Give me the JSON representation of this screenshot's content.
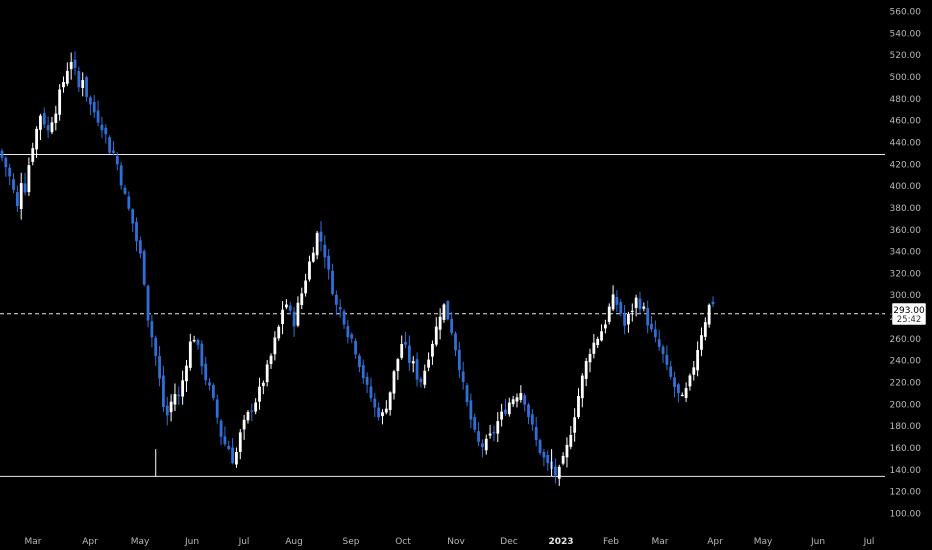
{
  "chart_data": {
    "type": "candlestick",
    "title": "",
    "xlabel": "",
    "ylabel": "",
    "ylim": [
      92,
      568
    ],
    "grid": false,
    "y_ticks": [
      "560.00",
      "540.00",
      "520.00",
      "500.00",
      "480.00",
      "460.00",
      "440.00",
      "420.00",
      "400.00",
      "380.00",
      "360.00",
      "340.00",
      "320.00",
      "300.00",
      "280.00",
      "260.00",
      "240.00",
      "220.00",
      "200.00",
      "180.00",
      "160.00",
      "140.00",
      "120.00",
      "100.00"
    ],
    "x_ticks": [
      {
        "label": "Mar",
        "bold": false
      },
      {
        "label": "Apr",
        "bold": false
      },
      {
        "label": "May",
        "bold": false
      },
      {
        "label": "Jun",
        "bold": false
      },
      {
        "label": "Jul",
        "bold": false
      },
      {
        "label": "Aug",
        "bold": false
      },
      {
        "label": "Sep",
        "bold": false
      },
      {
        "label": "Oct",
        "bold": false
      },
      {
        "label": "Nov",
        "bold": false
      },
      {
        "label": "Dec",
        "bold": false
      },
      {
        "label": "2023",
        "bold": true
      },
      {
        "label": "Feb",
        "bold": false
      },
      {
        "label": "Mar",
        "bold": false
      },
      {
        "label": "Apr",
        "bold": false
      },
      {
        "label": "May",
        "bold": false
      },
      {
        "label": "Jun",
        "bold": false
      },
      {
        "label": "Jul",
        "bold": false
      }
    ],
    "horizontal_levels": [
      {
        "value": 429,
        "style": "solid"
      },
      {
        "value": 134,
        "style": "solid"
      },
      {
        "value": 283,
        "style": "dashed"
      }
    ],
    "current_price": "293.00",
    "countdown": "25:42",
    "up_color": "#ffffff",
    "down_color": "#2f6fd6",
    "close_path": [
      426,
      418,
      408,
      395,
      380,
      406,
      398,
      420,
      438,
      452,
      466,
      459,
      450,
      462,
      471,
      484,
      496,
      508,
      516,
      504,
      490,
      500,
      484,
      474,
      468,
      462,
      456,
      446,
      434,
      430,
      420,
      405,
      390,
      378,
      366,
      350,
      336,
      314,
      280,
      262,
      244,
      222,
      198,
      190,
      202,
      210,
      206,
      222,
      240,
      256,
      262,
      250,
      238,
      224,
      214,
      202,
      188,
      172,
      164,
      160,
      150,
      156,
      172,
      182,
      190,
      198,
      204,
      212,
      222,
      232,
      244,
      258,
      270,
      288,
      292,
      282,
      276,
      290,
      302,
      316,
      330,
      344,
      356,
      350,
      338,
      320,
      306,
      290,
      286,
      278,
      266,
      260,
      250,
      238,
      226,
      214,
      206,
      196,
      192,
      190,
      200,
      212,
      228,
      242,
      256,
      250,
      240,
      236,
      226,
      222,
      232,
      246,
      258,
      270,
      284,
      290,
      280,
      268,
      252,
      236,
      216,
      200,
      186,
      172,
      164,
      162,
      164,
      170,
      176,
      184,
      190,
      196,
      202,
      206,
      210,
      212,
      204,
      190,
      178,
      166,
      158,
      150,
      144,
      140,
      136,
      138,
      148,
      160,
      176,
      192,
      208,
      224,
      238,
      250,
      256,
      262,
      268,
      276,
      288,
      296,
      292,
      284,
      272,
      280,
      288,
      296,
      292,
      286,
      276,
      266,
      258,
      252,
      244,
      232,
      224,
      216,
      208,
      204,
      212,
      222,
      236,
      252,
      266,
      278,
      290,
      294
    ],
    "candles": []
  }
}
